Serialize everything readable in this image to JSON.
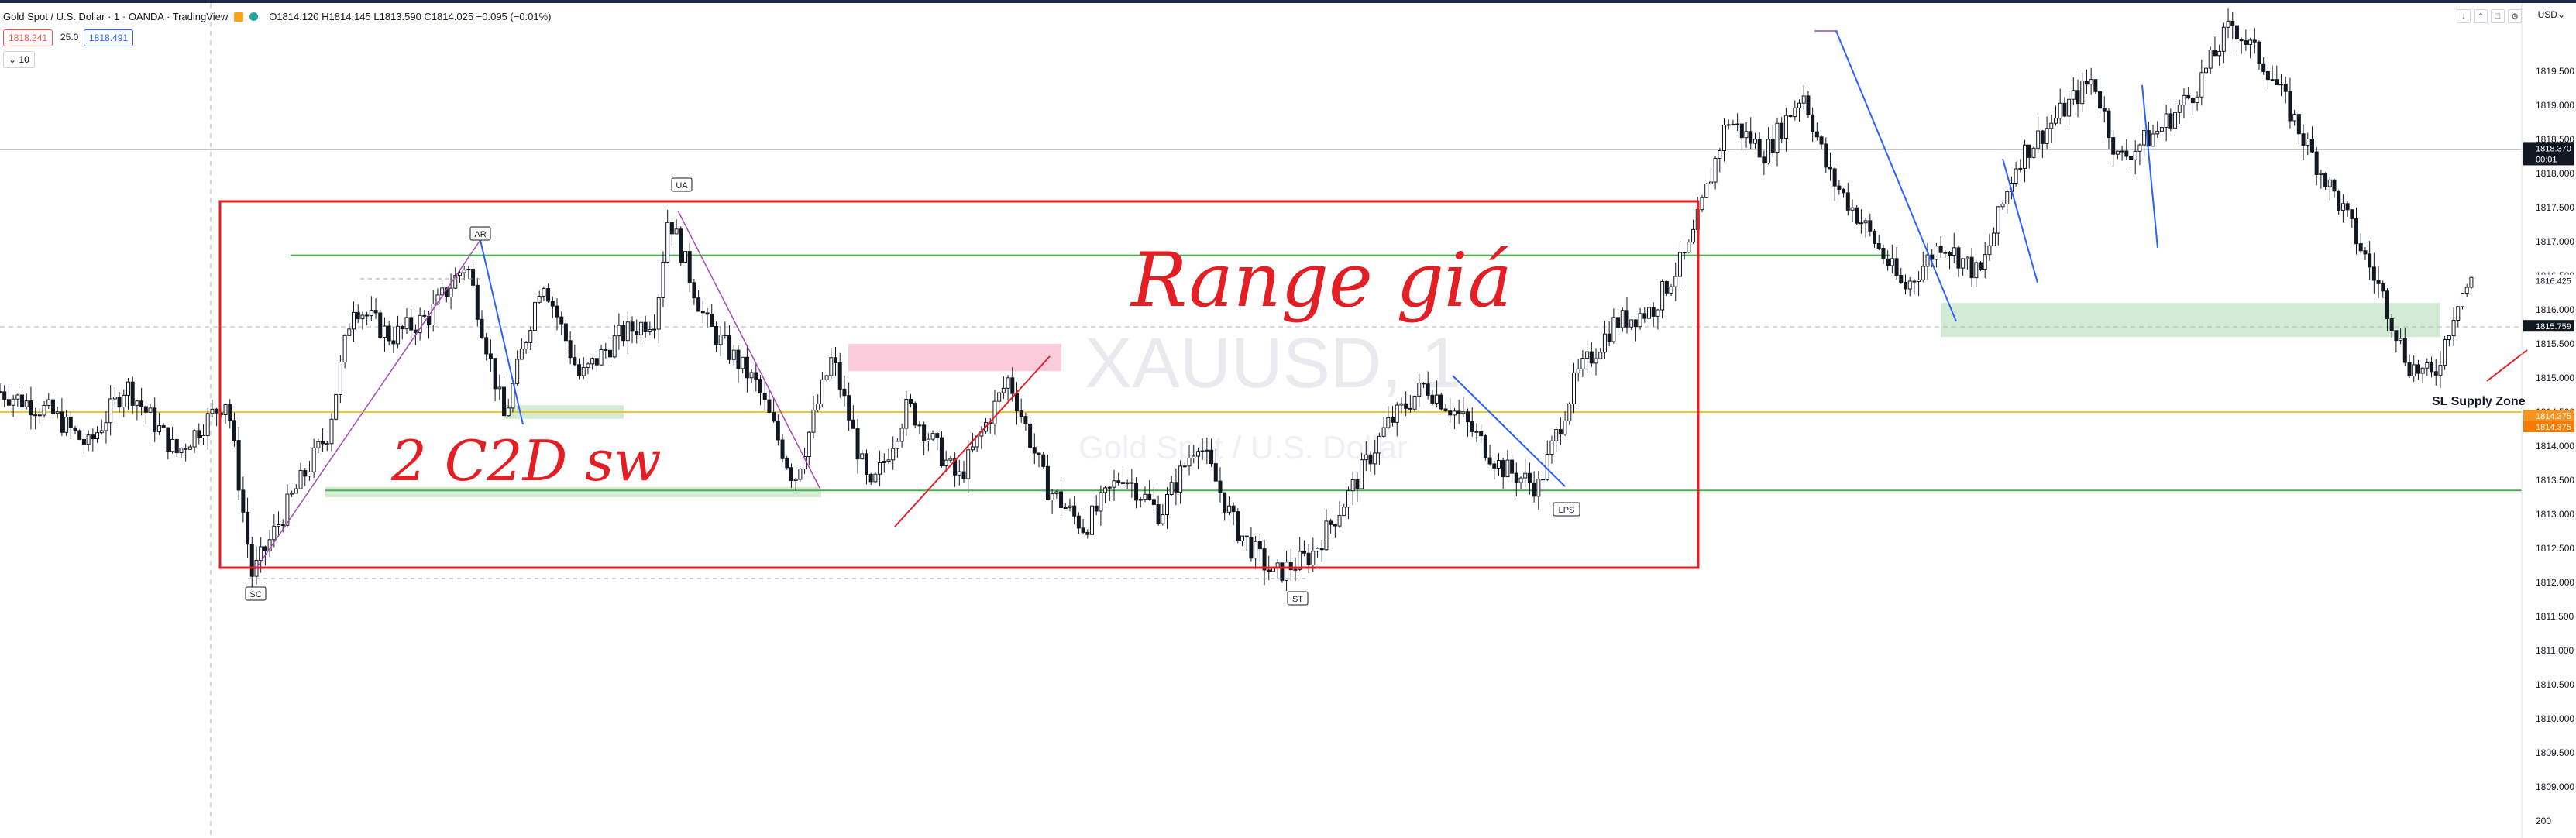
{
  "legend": {
    "title": "Gold Spot / U.S. Dollar · 1 · OANDA · TradingView",
    "ohlc": "O1814.120 H1814.145 L1813.590 C1814.025 −0.095 (−0.01%)"
  },
  "trade": {
    "bid": "1818.241",
    "spread": "25.0",
    "ask": "1818.491"
  },
  "indicator_toggle": "⌄ 10",
  "axis": {
    "currency": "USD⌄",
    "volume_label": "200"
  },
  "watermark": {
    "symbol": "XAUUSD, 1",
    "name": "Gold Spot / U.S. Dollar"
  },
  "annotations": {
    "handwriting_1": "Range giá",
    "handwriting_2": "2 C2D sw",
    "zone_label": "SL Supply Zone",
    "labels": [
      "AR",
      "UA",
      "SC",
      "ST",
      "LPS"
    ]
  },
  "colors": {
    "up": "#131722",
    "down": "#131722",
    "range_box": "#e31e24",
    "support": "#4caf50",
    "supply": "#f8bbd0",
    "demand": "#c8e6c9",
    "trend_blue": "#2962ff",
    "trend_purple": "#ab47bc",
    "trend_red": "#e31e24"
  },
  "chart_data": {
    "type": "candlestick",
    "symbol": "XAUUSD",
    "timeframe": "1",
    "ylim": [
      1808.5,
      1820.5
    ],
    "y_ticks": [
      "1809.000",
      "1809.500",
      "1810.000",
      "1810.500",
      "1811.000",
      "1811.500",
      "1812.000",
      "1812.500",
      "1813.000",
      "1813.500",
      "1814.000",
      "1814.500",
      "1815.000",
      "1815.500",
      "1816.000",
      "1816.500",
      "1817.000",
      "1817.500",
      "1818.000",
      "1818.500",
      "1819.000",
      "1819.500"
    ],
    "price_tags": [
      {
        "value": 1818.37,
        "label": "1818.370",
        "sub": "00:01",
        "style": "dark"
      },
      {
        "value": 1816.425,
        "label": "1816.425",
        "style": "light"
      },
      {
        "value": 1815.759,
        "label": "1815.759",
        "style": "dark"
      },
      {
        "value": 1814.375,
        "label": "1814.375",
        "style": "orange"
      },
      {
        "value": 1814.375,
        "label": "1814.375",
        "style": "orange2"
      }
    ],
    "horizontal_lines": [
      {
        "value": 1816.8,
        "color": "#4caf50"
      },
      {
        "value": 1813.35,
        "color": "#4caf50"
      },
      {
        "value": 1814.5,
        "color": "#f0c929"
      },
      {
        "value": 1818.35,
        "color": "#b2b5be"
      },
      {
        "value": 1815.75,
        "color": "#b2b5be",
        "dashed": true
      }
    ],
    "key_points": [
      {
        "t": 0.1,
        "p": 1812.0,
        "label": "SC"
      },
      {
        "t": 0.185,
        "p": 1816.9,
        "label": "AR"
      },
      {
        "t": 0.265,
        "p": 1817.45,
        "label": "UA"
      },
      {
        "t": 0.505,
        "p": 1812.0,
        "label": "ST"
      },
      {
        "t": 0.61,
        "p": 1813.3,
        "label": "LPS"
      }
    ],
    "path": [
      [
        0.0,
        1814.8
      ],
      [
        0.02,
        1814.5
      ],
      [
        0.035,
        1814.0
      ],
      [
        0.05,
        1814.9
      ],
      [
        0.07,
        1813.9
      ],
      [
        0.09,
        1814.7
      ],
      [
        0.1,
        1812.1
      ],
      [
        0.115,
        1813.2
      ],
      [
        0.13,
        1814.2
      ],
      [
        0.14,
        1816.1
      ],
      [
        0.155,
        1815.6
      ],
      [
        0.17,
        1815.9
      ],
      [
        0.185,
        1816.7
      ],
      [
        0.2,
        1814.4
      ],
      [
        0.215,
        1816.5
      ],
      [
        0.23,
        1815.0
      ],
      [
        0.245,
        1815.6
      ],
      [
        0.26,
        1815.9
      ],
      [
        0.265,
        1817.4
      ],
      [
        0.28,
        1815.8
      ],
      [
        0.3,
        1814.9
      ],
      [
        0.315,
        1813.5
      ],
      [
        0.33,
        1815.3
      ],
      [
        0.345,
        1813.3
      ],
      [
        0.36,
        1814.6
      ],
      [
        0.38,
        1813.5
      ],
      [
        0.4,
        1815.0
      ],
      [
        0.415,
        1813.4
      ],
      [
        0.43,
        1812.8
      ],
      [
        0.445,
        1813.6
      ],
      [
        0.46,
        1813.0
      ],
      [
        0.475,
        1814.1
      ],
      [
        0.49,
        1812.8
      ],
      [
        0.505,
        1812.1
      ],
      [
        0.52,
        1812.4
      ],
      [
        0.535,
        1813.3
      ],
      [
        0.55,
        1814.3
      ],
      [
        0.565,
        1814.9
      ],
      [
        0.58,
        1814.4
      ],
      [
        0.595,
        1813.7
      ],
      [
        0.61,
        1813.4
      ],
      [
        0.625,
        1815.0
      ],
      [
        0.64,
        1815.8
      ],
      [
        0.655,
        1816.0
      ],
      [
        0.67,
        1816.9
      ],
      [
        0.685,
        1818.8
      ],
      [
        0.7,
        1818.3
      ],
      [
        0.715,
        1819.2
      ],
      [
        0.725,
        1818.0
      ],
      [
        0.74,
        1817.2
      ],
      [
        0.755,
        1816.3
      ],
      [
        0.77,
        1817.0
      ],
      [
        0.785,
        1816.5
      ],
      [
        0.8,
        1818.2
      ],
      [
        0.815,
        1818.8
      ],
      [
        0.83,
        1819.4
      ],
      [
        0.84,
        1818.2
      ],
      [
        0.855,
        1818.6
      ],
      [
        0.87,
        1819.2
      ],
      [
        0.885,
        1820.2
      ],
      [
        0.9,
        1819.5
      ],
      [
        0.915,
        1818.4
      ],
      [
        0.93,
        1817.4
      ],
      [
        0.945,
        1816.2
      ],
      [
        0.955,
        1815.2
      ],
      [
        0.965,
        1815.0
      ],
      [
        0.975,
        1816.2
      ],
      [
        0.98,
        1816.4
      ]
    ]
  }
}
